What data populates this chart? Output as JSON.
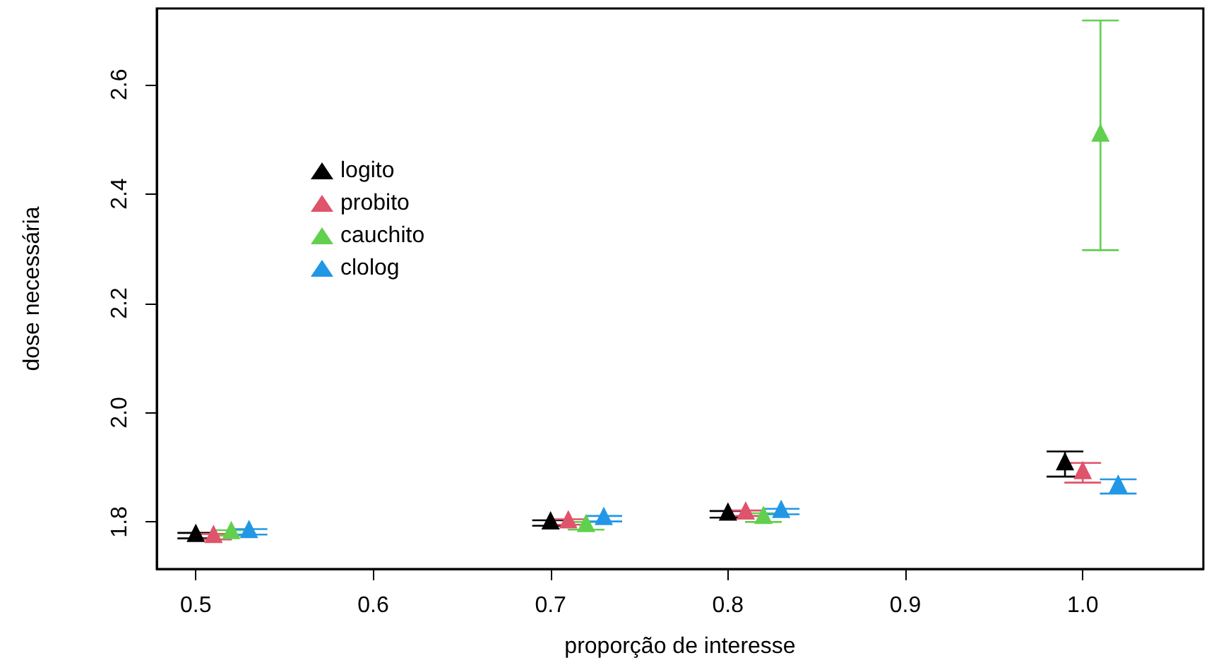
{
  "chart_data": {
    "type": "scatter",
    "xlabel": "proporção de interesse",
    "ylabel": "dose necessária",
    "marker": "triangle",
    "grid": false,
    "legend": "top left",
    "xlim": [
      0.478,
      1.068
    ],
    "xticks": [
      0.5,
      0.6,
      0.7,
      0.8,
      0.9,
      {
        "value": 1,
        "label": "1.0"
      }
    ],
    "ylim": [
      1.714,
      2.739
    ],
    "yticks": [
      1.8,
      {
        "value": 2,
        "label": "2.0"
      },
      2.2,
      2.4,
      2.6
    ],
    "series": [
      {
        "name": "logito",
        "color": "#000000",
        "x": [
          0.5,
          0.7,
          0.8,
          0.99
        ],
        "values": [
          1.775,
          1.798,
          1.814,
          1.906
        ],
        "errors": [
          0.005,
          0.005,
          0.006,
          0.023
        ]
      },
      {
        "name": "probito",
        "color": "#df536b",
        "x": [
          0.51,
          0.71,
          0.81,
          1.0
        ],
        "values": [
          1.773,
          1.8,
          1.816,
          1.89
        ],
        "errors": [
          0.005,
          0.005,
          0.005,
          0.018
        ]
      },
      {
        "name": "cauchito",
        "color": "#61d04f",
        "x": [
          0.52,
          0.72,
          0.82,
          1.01
        ],
        "values": [
          1.78,
          1.793,
          1.808,
          2.507
        ],
        "errors": [
          0.005,
          0.007,
          0.008,
          0.21
        ]
      },
      {
        "name": "clolog",
        "color": "#2297e6",
        "x": [
          0.53,
          0.73,
          0.83,
          1.02
        ],
        "values": [
          1.782,
          1.806,
          1.819,
          1.865
        ],
        "errors": [
          0.005,
          0.005,
          0.005,
          0.013
        ]
      }
    ]
  }
}
